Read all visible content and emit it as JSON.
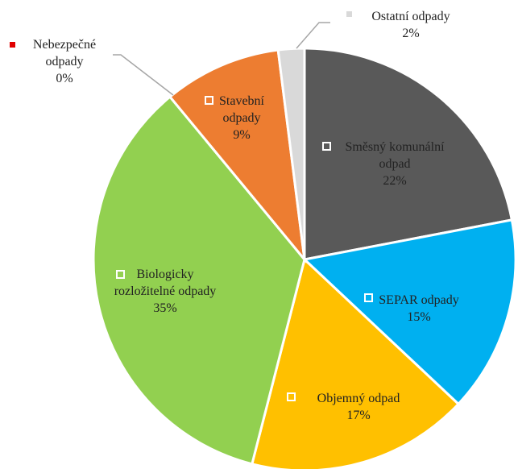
{
  "chart_data": {
    "type": "pie",
    "categories": [
      "Směsný komunální odpad",
      "SEPAR odpady",
      "Objemný odpad",
      "Biologicky rozložitelné odpady",
      "Nebezpečné odpady",
      "Stavební odpady",
      "Ostatní odpady"
    ],
    "values": [
      22,
      15,
      17,
      35,
      0,
      9,
      2
    ],
    "value_labels": [
      "22%",
      "15%",
      "17%",
      "35%",
      "0%",
      "9%",
      "2%"
    ],
    "colors": [
      "#595959",
      "#00b0f0",
      "#ffc000",
      "#92d050",
      "#e00000",
      "#ed7d31",
      "#d9d9d9"
    ]
  }
}
